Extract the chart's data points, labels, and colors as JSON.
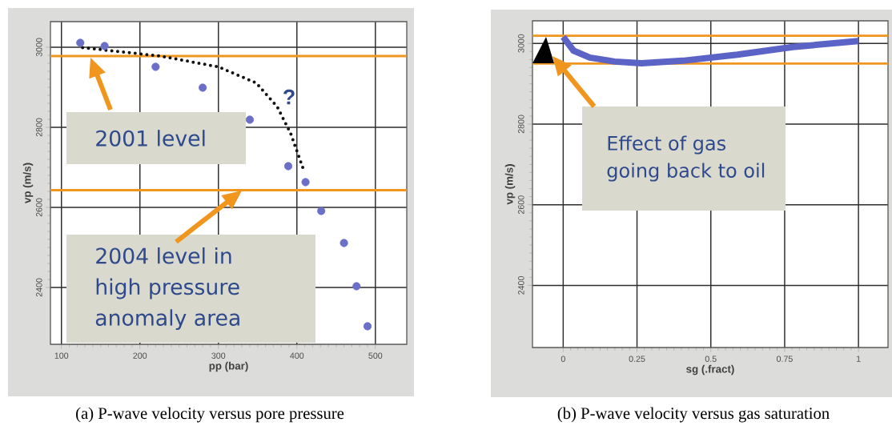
{
  "chart_data": [
    {
      "type": "scatter",
      "xlabel": "pp (bar)",
      "ylabel": "vp (m/s)",
      "xlim": [
        86,
        540
      ],
      "ylim": [
        2258,
        3064
      ],
      "xticks": [
        100,
        200,
        300,
        400,
        500
      ],
      "yticks": [
        2400,
        2600,
        2800,
        3000
      ],
      "grid": true,
      "series": [
        {
          "type": "scatter",
          "color": "#6a6fc8",
          "x": [
            124,
            155,
            220,
            280,
            340,
            389,
            411,
            431,
            460,
            476,
            490
          ],
          "values": [
            3011,
            3003,
            2951,
            2899,
            2819,
            2703,
            2663,
            2591,
            2511,
            2403,
            2303
          ]
        },
        {
          "type": "line",
          "line_style": "dotted",
          "color": "#111111",
          "x": [
            127,
            226,
            300,
            348,
            375,
            392,
            409
          ],
          "values": [
            2999,
            2978,
            2951,
            2911,
            2851,
            2785,
            2691
          ]
        }
      ],
      "ref_lines": [
        {
          "axis": "y",
          "value": 2978,
          "color": "#f0961e"
        },
        {
          "axis": "y",
          "value": 2643,
          "color": "#f0961e"
        }
      ],
      "annotations": [
        "?",
        "2001 level",
        "2004 level in high pressure anomaly area",
        "(a) P-wave velocity versus pore pressure"
      ]
    },
    {
      "type": "line",
      "xlabel": "sg (.fract)",
      "ylabel": "vp (m/s)",
      "xlim": [
        -0.104,
        1.1
      ],
      "ylim": [
        2246,
        3056
      ],
      "xticks": [
        0,
        0.25,
        0.5,
        0.75,
        1
      ],
      "yticks": [
        2400,
        2600,
        2800,
        3000
      ],
      "grid": true,
      "series": [
        {
          "color": "#5b63c6",
          "x": [
            0,
            0.035,
            0.09,
            0.174,
            0.266,
            0.405,
            0.59,
            0.777,
            1.0
          ],
          "values": [
            3016,
            2982,
            2965,
            2955,
            2951,
            2957,
            2972,
            2991,
            3006
          ]
        }
      ],
      "ref_lines": [
        {
          "axis": "y",
          "value": 3019,
          "color": "#f0961e"
        },
        {
          "axis": "y",
          "value": 2950,
          "color": "#f0961e"
        }
      ],
      "annotations": [
        "Effect of gas going back to oil",
        "(b) P-wave velocity versus gas saturation"
      ]
    }
  ]
}
